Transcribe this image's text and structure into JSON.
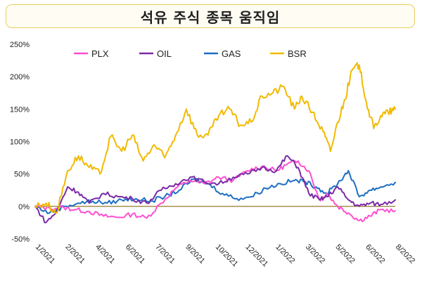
{
  "title": "석유 주식 종목 움직임",
  "chart_data": {
    "type": "line",
    "title": "석유 주식 종목 움직임",
    "y_unit": "%",
    "ylim": [
      -50,
      250
    ],
    "yticks": [
      "250%",
      "200%",
      "150%",
      "100%",
      "50%",
      "0%",
      "-50%"
    ],
    "ytick_values": [
      250,
      200,
      150,
      100,
      50,
      0,
      -50
    ],
    "x_tick_labels": [
      "1/2021",
      "2/2021",
      "4/2021",
      "6/2021",
      "7/2021",
      "9/2021",
      "10/2021",
      "12/2021",
      "1/2022",
      "3/2022",
      "5/2022",
      "6/2022",
      "8/2022"
    ],
    "legend_position": "top",
    "grid": false,
    "baseline": 0,
    "series": [
      {
        "name": "PLX",
        "color": "#ff4fd0",
        "x": [
          0,
          0.04,
          0.08,
          0.11,
          0.15,
          0.19,
          0.23,
          0.27,
          0.31,
          0.35,
          0.39,
          0.43,
          0.47,
          0.51,
          0.55,
          0.59,
          0.63,
          0.67,
          0.7,
          0.73,
          0.76,
          0.79,
          0.81,
          0.84,
          0.87,
          0.9,
          0.93,
          0.96,
          1.0
        ],
        "values": [
          0,
          -3,
          -2,
          -5,
          -8,
          -15,
          -17,
          -12,
          -18,
          5,
          28,
          40,
          35,
          45,
          40,
          55,
          62,
          55,
          65,
          70,
          55,
          10,
          20,
          0,
          -10,
          -22,
          -15,
          -5,
          -7
        ]
      },
      {
        "name": "OIL",
        "color": "#7a2aa6",
        "x": [
          0,
          0.03,
          0.06,
          0.09,
          0.12,
          0.15,
          0.19,
          0.23,
          0.27,
          0.31,
          0.35,
          0.39,
          0.43,
          0.47,
          0.51,
          0.55,
          0.59,
          0.63,
          0.67,
          0.7,
          0.73,
          0.76,
          0.79,
          0.81,
          0.84,
          0.87,
          0.9,
          0.93,
          0.96,
          1.0
        ],
        "values": [
          0,
          -25,
          -8,
          30,
          22,
          5,
          20,
          15,
          12,
          5,
          25,
          35,
          45,
          38,
          35,
          45,
          50,
          60,
          55,
          78,
          60,
          20,
          10,
          15,
          30,
          10,
          0,
          5,
          3,
          10
        ]
      },
      {
        "name": "GAS",
        "color": "#1d6fc4",
        "x": [
          0,
          0.04,
          0.08,
          0.12,
          0.16,
          0.2,
          0.24,
          0.28,
          0.32,
          0.36,
          0.4,
          0.44,
          0.48,
          0.52,
          0.56,
          0.6,
          0.64,
          0.68,
          0.72,
          0.75,
          0.78,
          0.81,
          0.84,
          0.87,
          0.9,
          0.93,
          0.96,
          1.0
        ],
        "values": [
          0,
          -10,
          0,
          5,
          8,
          5,
          10,
          12,
          8,
          15,
          25,
          42,
          35,
          20,
          12,
          15,
          28,
          35,
          40,
          38,
          30,
          20,
          35,
          55,
          15,
          25,
          30,
          37
        ]
      },
      {
        "name": "BSR",
        "color": "#f2ba00",
        "x": [
          0,
          0.03,
          0.06,
          0.09,
          0.12,
          0.15,
          0.18,
          0.21,
          0.24,
          0.27,
          0.3,
          0.33,
          0.36,
          0.39,
          0.42,
          0.45,
          0.48,
          0.51,
          0.54,
          0.57,
          0.6,
          0.63,
          0.66,
          0.69,
          0.72,
          0.74,
          0.77,
          0.8,
          0.82,
          0.84,
          0.86,
          0.88,
          0.9,
          0.92,
          0.94,
          0.96,
          0.98,
          1.0
        ],
        "values": [
          0,
          5,
          -10,
          55,
          78,
          60,
          50,
          108,
          85,
          110,
          70,
          95,
          75,
          110,
          150,
          110,
          110,
          140,
          150,
          125,
          130,
          170,
          175,
          185,
          150,
          170,
          145,
          115,
          85,
          130,
          165,
          210,
          218,
          160,
          120,
          140,
          145,
          150
        ]
      }
    ]
  }
}
